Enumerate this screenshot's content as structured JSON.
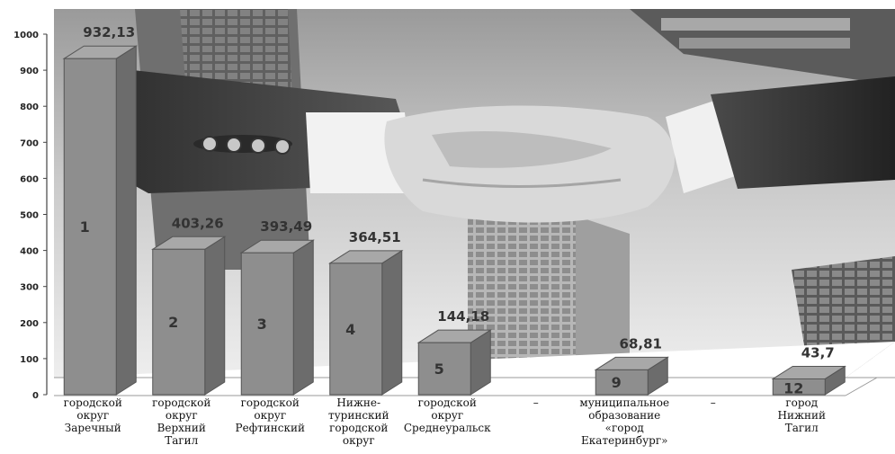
{
  "chart_data": {
    "type": "bar",
    "ylim": [
      0,
      1000
    ],
    "yticks": [
      "0",
      "100",
      "200",
      "300",
      "400",
      "500",
      "600",
      "700",
      "800",
      "900",
      "1000"
    ],
    "categories": [
      [
        "городской",
        "округ",
        "Заречный"
      ],
      [
        "городской",
        "округ",
        "Верхний",
        "Тагил"
      ],
      [
        "городской",
        "округ",
        "Рефтинский"
      ],
      [
        "Нижне-",
        "туринский",
        "городской",
        "округ"
      ],
      [
        "городской",
        "округ",
        "Среднеуральск"
      ],
      [
        "–"
      ],
      [
        "муниципальное",
        "образование",
        "«город",
        "Екатеринбург»"
      ],
      [
        "–"
      ],
      [
        "город",
        "Нижний",
        "Тагил"
      ]
    ],
    "bars": [
      {
        "cat": 0,
        "value": 932.13,
        "label": "932,13",
        "rank": "1"
      },
      {
        "cat": 1,
        "value": 403.26,
        "label": "403,26",
        "rank": "2"
      },
      {
        "cat": 2,
        "value": 393.49,
        "label": "393,49",
        "rank": "3"
      },
      {
        "cat": 3,
        "value": 364.51,
        "label": "364,51",
        "rank": "4"
      },
      {
        "cat": 4,
        "value": 144.18,
        "label": "144,18",
        "rank": "5"
      },
      {
        "cat": 6,
        "value": 68.81,
        "label": "68,81",
        "rank": "9"
      },
      {
        "cat": 8,
        "value": 43.7,
        "label": "43,7",
        "rank": "12"
      }
    ],
    "grid": false,
    "background": "photo-handshake-skyscrapers",
    "colors": {
      "bar_front": "#8e8e8e",
      "bar_side": "#6c6c6c",
      "bar_top": "#a8a8a8",
      "bar_edge": "#555555"
    }
  }
}
